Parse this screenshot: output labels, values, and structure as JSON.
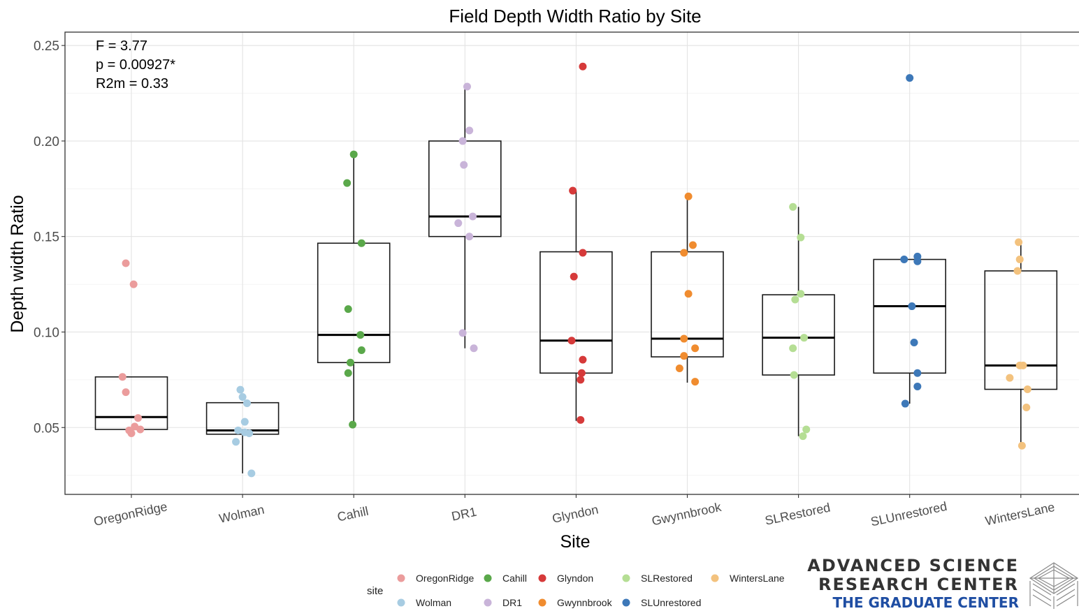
{
  "chart_data": {
    "type": "boxplot",
    "title": "Field Depth Width Ratio by Site",
    "xlabel": "Site",
    "ylabel": "Depth width Ratio",
    "ylim": [
      0.015,
      0.257
    ],
    "yticks": [
      0.05,
      0.1,
      0.15,
      0.2,
      0.25
    ],
    "ytick_labels": [
      "0.05",
      "0.10",
      "0.15",
      "0.20",
      "0.25"
    ],
    "grid": true,
    "legend_title": "site",
    "legend_position": "bottom",
    "stats": [
      "F = 3.77",
      "p = 0.00927*",
      "R2m = 0.33"
    ],
    "categories": [
      "OregonRidge",
      "Wolman",
      "Cahill",
      "DR1",
      "Glyndon",
      "Gwynnbrook",
      "SLRestored",
      "SLUnrestored",
      "WintersLane"
    ],
    "series": [
      {
        "name": "OregonRidge",
        "color": "#eb9c9c",
        "box": {
          "q1": 0.049,
          "median": 0.0555,
          "q3": 0.0765,
          "whisker_low": 0.047,
          "whisker_high": 0.0765
        },
        "points": [
          [
            -0.05,
            0.136
          ],
          [
            0.02,
            0.125
          ],
          [
            -0.08,
            0.0765
          ],
          [
            -0.05,
            0.0685
          ],
          [
            0.06,
            0.055
          ],
          [
            0.03,
            0.0505
          ],
          [
            0.08,
            0.049
          ],
          [
            -0.02,
            0.0485
          ],
          [
            0.0,
            0.047
          ]
        ]
      },
      {
        "name": "Wolman",
        "color": "#a7cce2",
        "box": {
          "q1": 0.0465,
          "median": 0.0485,
          "q3": 0.063,
          "whisker_low": 0.026,
          "whisker_high": 0.063
        },
        "points": [
          [
            -0.02,
            0.0698
          ],
          [
            0.0,
            0.066
          ],
          [
            0.04,
            0.0627
          ],
          [
            0.02,
            0.053
          ],
          [
            -0.04,
            0.0485
          ],
          [
            0.02,
            0.0475
          ],
          [
            0.06,
            0.047
          ],
          [
            -0.06,
            0.0425
          ],
          [
            0.08,
            0.026
          ]
        ]
      },
      {
        "name": "Cahill",
        "color": "#5aa84a",
        "box": {
          "q1": 0.084,
          "median": 0.0985,
          "q3": 0.1465,
          "whisker_low": 0.0515,
          "whisker_high": 0.193
        },
        "points": [
          [
            0.0,
            0.193
          ],
          [
            -0.06,
            0.178
          ],
          [
            0.07,
            0.1465
          ],
          [
            -0.05,
            0.112
          ],
          [
            0.06,
            0.0985
          ],
          [
            0.07,
            0.0905
          ],
          [
            -0.03,
            0.084
          ],
          [
            -0.05,
            0.0785
          ],
          [
            -0.01,
            0.0515
          ]
        ]
      },
      {
        "name": "DR1",
        "color": "#c9b4d9",
        "box": {
          "q1": 0.15,
          "median": 0.1605,
          "q3": 0.2,
          "whisker_low": 0.0915,
          "whisker_high": 0.2285
        },
        "points": [
          [
            0.02,
            0.2285
          ],
          [
            0.04,
            0.2055
          ],
          [
            -0.02,
            0.2
          ],
          [
            -0.01,
            0.1875
          ],
          [
            -0.06,
            0.157
          ],
          [
            0.07,
            0.1605
          ],
          [
            0.04,
            0.15
          ],
          [
            -0.02,
            0.0995
          ],
          [
            0.08,
            0.0915
          ]
        ]
      },
      {
        "name": "Glyndon",
        "color": "#d63a3a",
        "box": {
          "q1": 0.0785,
          "median": 0.0955,
          "q3": 0.142,
          "whisker_low": 0.0535,
          "whisker_high": 0.174
        },
        "points": [
          [
            0.06,
            0.239
          ],
          [
            -0.03,
            0.174
          ],
          [
            0.06,
            0.1415
          ],
          [
            -0.02,
            0.129
          ],
          [
            -0.04,
            0.0955
          ],
          [
            0.06,
            0.0855
          ],
          [
            0.05,
            0.0785
          ],
          [
            0.04,
            0.075
          ],
          [
            0.04,
            0.054
          ]
        ]
      },
      {
        "name": "Gwynnbrook",
        "color": "#f08c2f",
        "box": {
          "q1": 0.087,
          "median": 0.0965,
          "q3": 0.142,
          "whisker_low": 0.0735,
          "whisker_high": 0.171
        },
        "points": [
          [
            0.01,
            0.171
          ],
          [
            0.05,
            0.1455
          ],
          [
            -0.03,
            0.1415
          ],
          [
            0.01,
            0.12
          ],
          [
            -0.03,
            0.0965
          ],
          [
            0.07,
            0.0915
          ],
          [
            -0.03,
            0.0875
          ],
          [
            -0.07,
            0.081
          ],
          [
            0.07,
            0.074
          ]
        ]
      },
      {
        "name": "SLRestored",
        "color": "#b5de94",
        "box": {
          "q1": 0.0775,
          "median": 0.097,
          "q3": 0.1195,
          "whisker_low": 0.0455,
          "whisker_high": 0.1655
        },
        "points": [
          [
            -0.05,
            0.1655
          ],
          [
            0.02,
            0.1495
          ],
          [
            0.02,
            0.12
          ],
          [
            -0.03,
            0.117
          ],
          [
            0.05,
            0.097
          ],
          [
            -0.05,
            0.0915
          ],
          [
            -0.04,
            0.0775
          ],
          [
            0.07,
            0.049
          ],
          [
            0.04,
            0.0455
          ]
        ]
      },
      {
        "name": "SLUnrestored",
        "color": "#3d78b8",
        "box": {
          "q1": 0.0785,
          "median": 0.1135,
          "q3": 0.138,
          "whisker_low": 0.0625,
          "whisker_high": 0.138
        },
        "points": [
          [
            0.0,
            0.233
          ],
          [
            0.07,
            0.1395
          ],
          [
            -0.05,
            0.138
          ],
          [
            0.07,
            0.137
          ],
          [
            0.02,
            0.1135
          ],
          [
            0.04,
            0.0945
          ],
          [
            0.07,
            0.0785
          ],
          [
            0.07,
            0.0715
          ],
          [
            -0.04,
            0.0625
          ]
        ]
      },
      {
        "name": "WintersLane",
        "color": "#f3c27e",
        "box": {
          "q1": 0.07,
          "median": 0.0825,
          "q3": 0.132,
          "whisker_low": 0.0405,
          "whisker_high": 0.147
        },
        "points": [
          [
            -0.02,
            0.147
          ],
          [
            -0.01,
            0.138
          ],
          [
            -0.03,
            0.132
          ],
          [
            -0.01,
            0.0825
          ],
          [
            0.02,
            0.0825
          ],
          [
            -0.1,
            0.076
          ],
          [
            0.06,
            0.07
          ],
          [
            0.05,
            0.0605
          ],
          [
            0.01,
            0.0405
          ]
        ]
      }
    ]
  },
  "logo": {
    "line1": "ADVANCED SCIENCE",
    "line2": "RESEARCH CENTER",
    "line3": "THE GRADUATE CENTER"
  }
}
